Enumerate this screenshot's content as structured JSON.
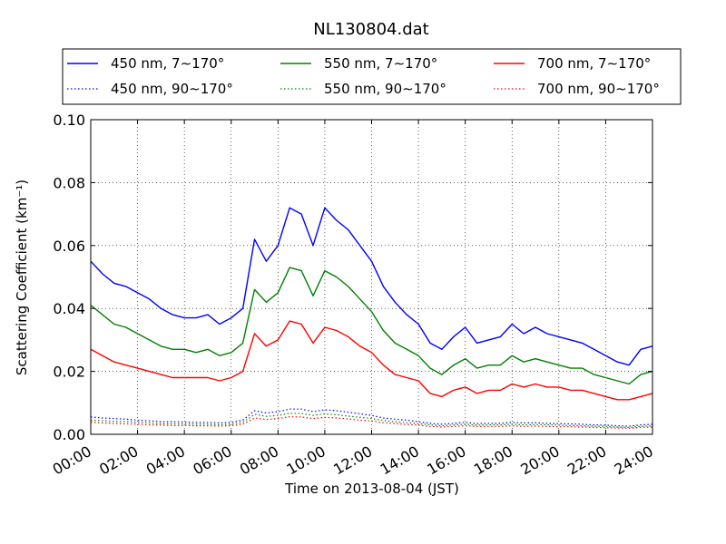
{
  "chart_data": {
    "type": "line",
    "title": "NL130804.dat",
    "xlabel": "Time on 2013-08-04 (JST)",
    "ylabel": "Scattering Coefficient (km⁻¹)",
    "xlim": [
      "00:00",
      "24:00"
    ],
    "ylim": [
      0,
      0.1
    ],
    "x_ticks": [
      "00:00",
      "02:00",
      "04:00",
      "06:00",
      "08:00",
      "10:00",
      "12:00",
      "14:00",
      "16:00",
      "18:00",
      "20:00",
      "22:00",
      "24:00"
    ],
    "y_ticks": [
      "0.00",
      "0.02",
      "0.04",
      "0.06",
      "0.08",
      "0.10"
    ],
    "grid": true,
    "legend_position": "top",
    "x": [
      "00:00",
      "00:30",
      "01:00",
      "01:30",
      "02:00",
      "02:30",
      "03:00",
      "03:30",
      "04:00",
      "04:30",
      "05:00",
      "05:30",
      "06:00",
      "06:30",
      "07:00",
      "07:30",
      "08:00",
      "08:30",
      "09:00",
      "09:30",
      "10:00",
      "10:30",
      "11:00",
      "11:30",
      "12:00",
      "12:30",
      "13:00",
      "13:30",
      "14:00",
      "14:30",
      "15:00",
      "15:30",
      "16:00",
      "16:30",
      "17:00",
      "17:30",
      "18:00",
      "18:30",
      "19:00",
      "19:30",
      "20:00",
      "20:30",
      "21:00",
      "21:30",
      "22:00",
      "22:30",
      "23:00",
      "23:30",
      "24:00"
    ],
    "series": [
      {
        "name": "450 nm, 7∼170°",
        "color": "#0000ff",
        "style": "solid",
        "values": [
          0.055,
          0.051,
          0.048,
          0.047,
          0.045,
          0.043,
          0.04,
          0.038,
          0.037,
          0.037,
          0.038,
          0.035,
          0.037,
          0.04,
          0.062,
          0.055,
          0.06,
          0.072,
          0.07,
          0.06,
          0.072,
          0.068,
          0.065,
          0.06,
          0.055,
          0.047,
          0.042,
          0.038,
          0.035,
          0.029,
          0.027,
          0.031,
          0.034,
          0.029,
          0.03,
          0.031,
          0.035,
          0.032,
          0.034,
          0.032,
          0.031,
          0.03,
          0.029,
          0.027,
          0.025,
          0.023,
          0.022,
          0.027,
          0.028
        ]
      },
      {
        "name": "450 nm, 90∼170°",
        "color": "#0000ff",
        "style": "dotted",
        "values": [
          0.0055,
          0.0052,
          0.005,
          0.0048,
          0.0045,
          0.0043,
          0.004,
          0.004,
          0.0039,
          0.0038,
          0.0038,
          0.0036,
          0.0038,
          0.0045,
          0.0075,
          0.0068,
          0.0072,
          0.008,
          0.008,
          0.0072,
          0.0078,
          0.0075,
          0.007,
          0.0065,
          0.006,
          0.0052,
          0.0048,
          0.0045,
          0.004,
          0.0035,
          0.0032,
          0.0035,
          0.0038,
          0.0034,
          0.0035,
          0.0035,
          0.0038,
          0.0036,
          0.0037,
          0.0035,
          0.0034,
          0.0033,
          0.0032,
          0.003,
          0.0029,
          0.0027,
          0.0026,
          0.003,
          0.0032
        ]
      },
      {
        "name": "550 nm, 7∼170°",
        "color": "#008000",
        "style": "solid",
        "values": [
          0.041,
          0.038,
          0.035,
          0.034,
          0.032,
          0.03,
          0.028,
          0.027,
          0.027,
          0.026,
          0.027,
          0.025,
          0.026,
          0.029,
          0.046,
          0.042,
          0.045,
          0.053,
          0.052,
          0.044,
          0.052,
          0.05,
          0.047,
          0.043,
          0.039,
          0.033,
          0.029,
          0.027,
          0.025,
          0.021,
          0.019,
          0.022,
          0.024,
          0.021,
          0.022,
          0.022,
          0.025,
          0.023,
          0.024,
          0.023,
          0.022,
          0.021,
          0.021,
          0.019,
          0.018,
          0.017,
          0.016,
          0.019,
          0.02
        ]
      },
      {
        "name": "550 nm, 90∼170°",
        "color": "#008000",
        "style": "dotted",
        "values": [
          0.0045,
          0.0043,
          0.0041,
          0.004,
          0.0038,
          0.0036,
          0.0034,
          0.0033,
          0.0033,
          0.0032,
          0.0032,
          0.003,
          0.0032,
          0.0038,
          0.0063,
          0.0057,
          0.006,
          0.0067,
          0.0066,
          0.006,
          0.0065,
          0.0062,
          0.0058,
          0.0054,
          0.005,
          0.0044,
          0.004,
          0.0037,
          0.0034,
          0.003,
          0.0027,
          0.003,
          0.0032,
          0.0029,
          0.003,
          0.003,
          0.0032,
          0.003,
          0.0031,
          0.003,
          0.0029,
          0.0028,
          0.0027,
          0.0026,
          0.0025,
          0.0023,
          0.0022,
          0.0025,
          0.0027
        ]
      },
      {
        "name": "700 nm, 7∼170°",
        "color": "#ff0000",
        "style": "solid",
        "values": [
          0.027,
          0.025,
          0.023,
          0.022,
          0.021,
          0.02,
          0.019,
          0.018,
          0.018,
          0.018,
          0.018,
          0.017,
          0.018,
          0.02,
          0.032,
          0.028,
          0.03,
          0.036,
          0.035,
          0.029,
          0.034,
          0.033,
          0.031,
          0.028,
          0.026,
          0.022,
          0.019,
          0.018,
          0.017,
          0.013,
          0.012,
          0.014,
          0.015,
          0.013,
          0.014,
          0.014,
          0.016,
          0.015,
          0.016,
          0.015,
          0.015,
          0.014,
          0.014,
          0.013,
          0.012,
          0.011,
          0.011,
          0.012,
          0.013
        ]
      },
      {
        "name": "700 nm, 90∼170°",
        "color": "#ff0000",
        "style": "dotted",
        "values": [
          0.0038,
          0.0036,
          0.0034,
          0.0033,
          0.0032,
          0.003,
          0.0029,
          0.0028,
          0.0028,
          0.0027,
          0.0027,
          0.0026,
          0.0027,
          0.0032,
          0.0052,
          0.0047,
          0.005,
          0.0056,
          0.0055,
          0.005,
          0.0054,
          0.0052,
          0.0049,
          0.0045,
          0.0042,
          0.0037,
          0.0034,
          0.0031,
          0.0029,
          0.0025,
          0.0023,
          0.0025,
          0.0027,
          0.0025,
          0.0025,
          0.0025,
          0.0027,
          0.0025,
          0.0026,
          0.0025,
          0.0024,
          0.0024,
          0.0023,
          0.0022,
          0.0021,
          0.002,
          0.0019,
          0.0022,
          0.0023
        ]
      }
    ]
  }
}
